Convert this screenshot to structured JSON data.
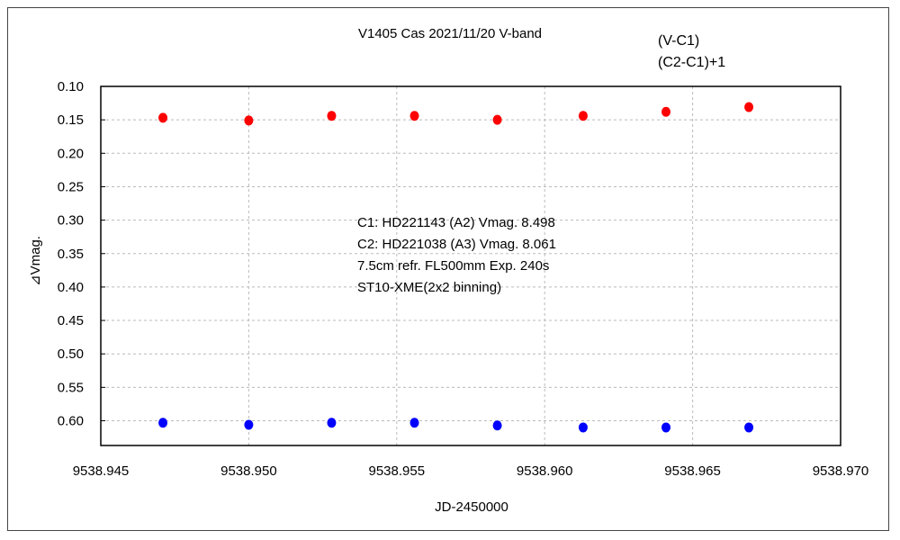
{
  "chart_data": {
    "type": "scatter",
    "title": "V1405 Cas    2021/11/20    V-band",
    "xlabel": "JD-2450000",
    "ylabel": "⊿Vmag.",
    "xlim": [
      9538.945,
      9538.97
    ],
    "ylim": [
      0.1,
      0.637
    ],
    "y_inverted": true,
    "grid": true,
    "xticks": [
      "9538.945",
      "9538.950",
      "9538.955",
      "9538.960",
      "9538.965",
      "9538.970"
    ],
    "xtick_values": [
      9538.945,
      9538.95,
      9538.955,
      9538.96,
      9538.965,
      9538.97
    ],
    "yticks": [
      "0.10",
      "0.15",
      "0.20",
      "0.25",
      "0.30",
      "0.35",
      "0.40",
      "0.45",
      "0.50",
      "0.55",
      "0.60"
    ],
    "ytick_values": [
      0.1,
      0.15,
      0.2,
      0.25,
      0.3,
      0.35,
      0.4,
      0.45,
      0.5,
      0.55,
      0.6
    ],
    "legend_position": "top-right",
    "series": [
      {
        "name": "(V-C1)",
        "color": "#ff0000",
        "x": [
          9538.9471,
          9538.95,
          9538.9528,
          9538.9556,
          9538.9584,
          9538.9613,
          9538.9641,
          9538.9669
        ],
        "y": [
          0.147,
          0.151,
          0.144,
          0.144,
          0.15,
          0.144,
          0.138,
          0.131
        ]
      },
      {
        "name": "(C2-C1)+1",
        "color": "#0000ff",
        "x": [
          9538.9471,
          9538.95,
          9538.9528,
          9538.9556,
          9538.9584,
          9538.9613,
          9538.9641,
          9538.9669
        ],
        "y": [
          0.603,
          0.606,
          0.603,
          0.603,
          0.607,
          0.61,
          0.61,
          0.61
        ]
      }
    ],
    "annotations": [
      "C1: HD221143 (A2) Vmag. 8.498",
      "C2: HD221038 (A3) Vmag. 8.061",
      "7.5cm refr. FL500mm Exp. 240s",
      "ST10-XME(2x2 binning)"
    ]
  }
}
